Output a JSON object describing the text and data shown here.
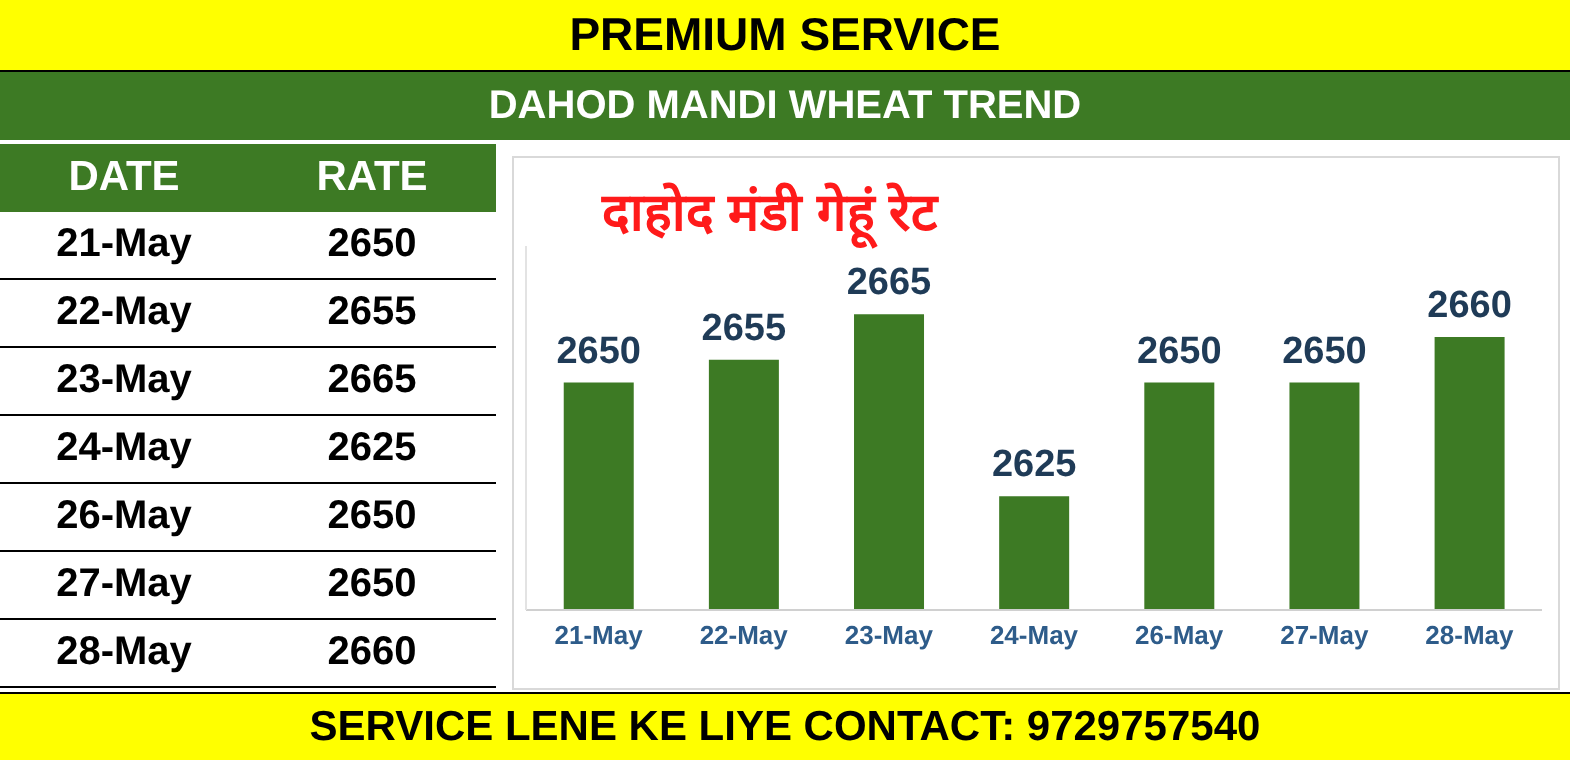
{
  "chart_data": [
    {
      "type": "other",
      "title": "PREMIUM SERVICE",
      "subtitle": "DAHOD MANDI WHEAT TREND",
      "annotations": [
        "DATE",
        "RATE",
        "SERVICE LENE KE LIYE CONTACT: 9729757540"
      ],
      "categories": [
        "21-May",
        "22-May",
        "23-May",
        "24-May",
        "26-May",
        "27-May",
        "28-May"
      ],
      "values": [
        2650,
        2655,
        2665,
        2625,
        2650,
        2650,
        2660
      ],
      "data_labels": true
    },
    {
      "type": "bar",
      "title": "दाहोद मंडी गेहूं रेट",
      "categories": [
        "21-May",
        "22-May",
        "23-May",
        "24-May",
        "26-May",
        "27-May",
        "28-May"
      ],
      "values": [
        2650,
        2655,
        2665,
        2625,
        2650,
        2650,
        2660
      ],
      "color": "#3d7a24",
      "ylim": [
        2600,
        2680
      ],
      "tick_labels": "x",
      "data_labels": true,
      "grid": false,
      "legend": false
    }
  ]
}
